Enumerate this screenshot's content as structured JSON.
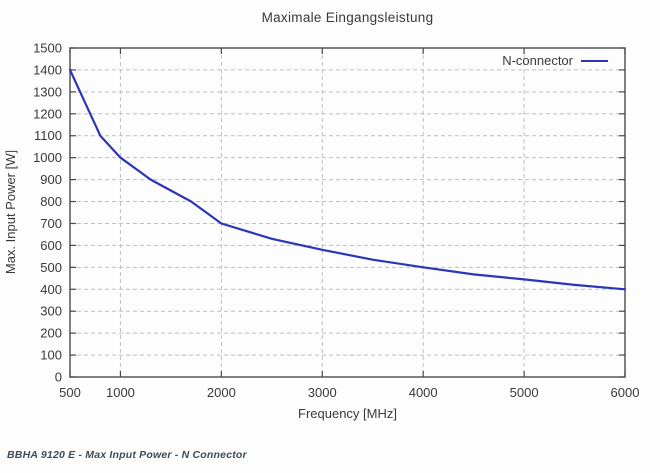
{
  "title": "Maximale Eingangsleistung",
  "footer": "BBHA 9120 E - Max Input Power - N Connector",
  "chart_data": {
    "type": "line",
    "title": "Maximale Eingangsleistung",
    "xlabel": "Frequency [MHz]",
    "ylabel": "Max. Input Power [W]",
    "xlim": [
      500,
      6000
    ],
    "ylim": [
      0,
      1500
    ],
    "x_ticks": [
      500,
      1000,
      2000,
      3000,
      4000,
      5000,
      6000
    ],
    "y_ticks": [
      0,
      100,
      200,
      300,
      400,
      500,
      600,
      700,
      800,
      900,
      1000,
      1100,
      1200,
      1300,
      1400,
      1500
    ],
    "grid": true,
    "legend_position": "top-right-inside",
    "series": [
      {
        "name": "N-connector",
        "color": "#2a35bb",
        "points": [
          [
            500,
            1400
          ],
          [
            800,
            1100
          ],
          [
            1000,
            1000
          ],
          [
            1300,
            900
          ],
          [
            1700,
            800
          ],
          [
            2000,
            700
          ],
          [
            2500,
            630
          ],
          [
            3000,
            580
          ],
          [
            3500,
            535
          ],
          [
            4000,
            500
          ],
          [
            4500,
            468
          ],
          [
            5000,
            445
          ],
          [
            5500,
            420
          ],
          [
            6000,
            400
          ]
        ]
      }
    ]
  },
  "colors": {
    "line": "#2a35bb",
    "grid": "#bfbfbf",
    "axis": "#4a4a4a",
    "text": "#3a3a3a",
    "footer_text": "#3f4c57",
    "background": "#fdfdfd"
  }
}
